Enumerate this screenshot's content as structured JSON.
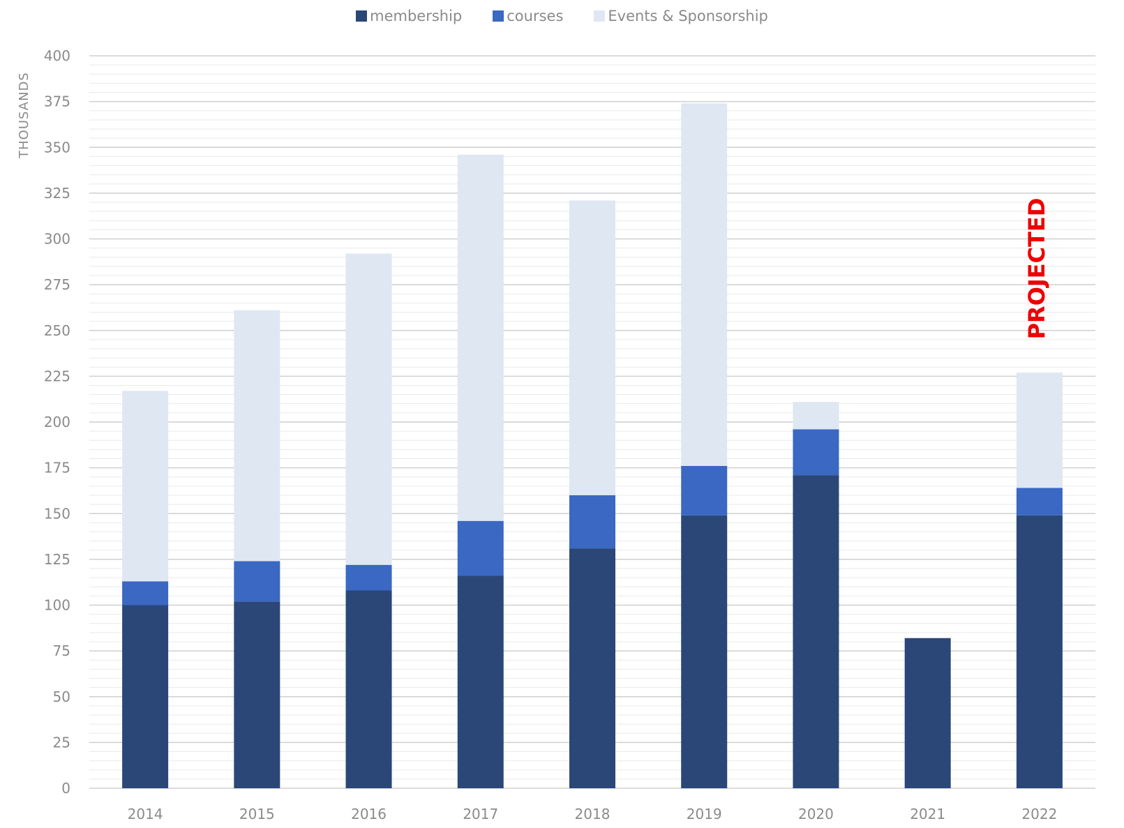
{
  "chart_data": {
    "type": "bar",
    "stacked": true,
    "categories": [
      "2014",
      "2015",
      "2016",
      "2017",
      "2018",
      "2019",
      "2020",
      "2021",
      "2022"
    ],
    "series": [
      {
        "name": "membership",
        "color": "#2a4778",
        "values": [
          100,
          102,
          108,
          116,
          131,
          149,
          171,
          82,
          149
        ]
      },
      {
        "name": "courses",
        "color": "#3a68c2",
        "values": [
          13,
          22,
          14,
          30,
          29,
          27,
          25,
          0,
          15
        ]
      },
      {
        "name": "Events & Sponsorship",
        "color": "#dfe7f2",
        "values": [
          104,
          137,
          170,
          200,
          161,
          198,
          15,
          0,
          63
        ]
      }
    ],
    "ylabel": "THOUSANDS",
    "yticks": [
      0,
      25,
      50,
      75,
      100,
      125,
      150,
      175,
      200,
      225,
      250,
      275,
      300,
      325,
      350,
      375,
      400
    ],
    "ylim": [
      0,
      400
    ],
    "grid": true,
    "legend": "top-center",
    "annotation": {
      "text": "PROJECTED",
      "category": "2022",
      "color": "#ee0000"
    }
  }
}
